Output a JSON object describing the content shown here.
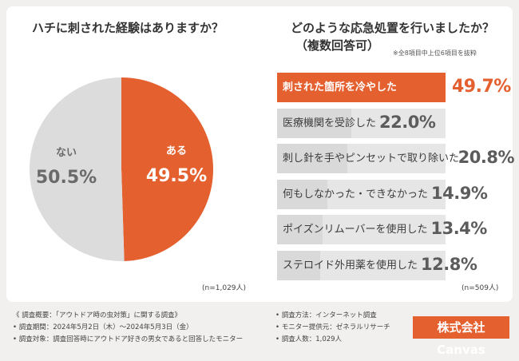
{
  "left": {
    "title": "ハチに刺された経験はありますか？",
    "n_note": "(n=1,029人)"
  },
  "right": {
    "title": "どのような応急処置を行いましたか？",
    "subtitle": "（複数回答可）",
    "note": "※全8項目中上位6項目を抜粋",
    "n_note": "(n=509人)"
  },
  "chart_data": [
    {
      "type": "pie",
      "title": "ハチに刺された経験はありますか？",
      "slices": [
        {
          "label": "ある",
          "value": 49.5,
          "value_label": "49.5%",
          "color": "#e5602f"
        },
        {
          "label": "ない",
          "value": 50.5,
          "value_label": "50.5%",
          "color": "#dcdcdc"
        }
      ]
    },
    {
      "type": "bar",
      "orientation": "horizontal",
      "title": "どのような応急処置を行いましたか？",
      "subtitle": "（複数回答可）",
      "categories": [
        "刺された箇所を冷やした",
        "医療機関を受診した",
        "刺し針を手やピンセットで取り除いた",
        "何もしなかった・できなかった",
        "ポイズンリムーバーを使用した",
        "ステロイド外用薬を使用した"
      ],
      "values": [
        49.7,
        22.0,
        20.8,
        14.9,
        13.4,
        12.8
      ],
      "value_labels": [
        "49.7%",
        "22.0%",
        "20.8%",
        "14.9%",
        "13.4%",
        "12.8%"
      ],
      "highlight_color": "#e5602f",
      "bar_color": "#d9d9d9",
      "track_color": "#e6e6e6",
      "xlim": [
        0,
        100
      ]
    }
  ],
  "footer": {
    "left": [
      "《 調査概要：「アウトドア時の虫対策」に関する調査》",
      "• 調査期間：2024年5月2日（木）～2024年5月3日（金）",
      "• 調査対象：調査回答時にアウトドア好きの男女であると回答したモニター"
    ],
    "right": [
      "• 調査方法：インターネット調査",
      "• モニター提供元：ゼネラルリサーチ",
      "• 調査人数：1,029人"
    ],
    "brand": "株式会社 Canvas"
  }
}
